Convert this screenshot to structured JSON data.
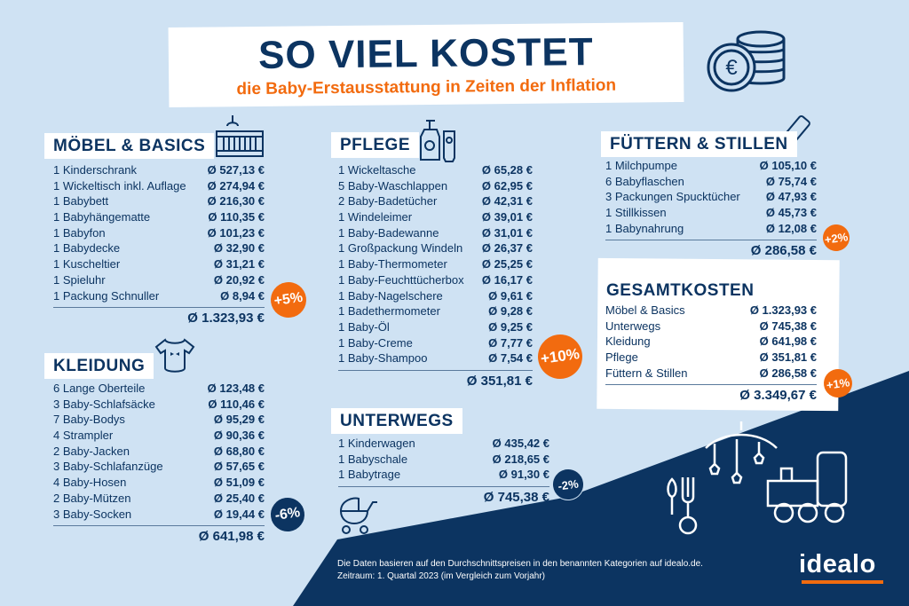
{
  "header": {
    "title": "SO VIEL KOSTET",
    "subtitle": "die Baby-Erstausstattung in Zeiten der Inflation"
  },
  "colors": {
    "navy": "#0c3461",
    "orange": "#f26b0f",
    "background": "#cfe2f3"
  },
  "sections": {
    "moebel": {
      "title": "MÖBEL & BASICS",
      "icon": "crib-icon",
      "items": [
        {
          "label": "1 Kinderschrank",
          "value": "Ø 527,13 €"
        },
        {
          "label": "1 Wickeltisch inkl. Auflage",
          "value": "Ø 274,94 €"
        },
        {
          "label": "1 Babybett",
          "value": "Ø 216,30 €"
        },
        {
          "label": "1 Babyhängematte",
          "value": "Ø 110,35 €"
        },
        {
          "label": "1 Babyfon",
          "value": "Ø 101,23 €"
        },
        {
          "label": "1 Babydecke",
          "value": "Ø 32,90 €"
        },
        {
          "label": "1 Kuscheltier",
          "value": "Ø 31,21 €"
        },
        {
          "label": "1 Spieluhr",
          "value": "Ø 20,92 €"
        },
        {
          "label": "1 Packung Schnuller",
          "value": "Ø 8,94 €"
        }
      ],
      "total": "Ø 1.323,93 €",
      "change": "+5%"
    },
    "kleidung": {
      "title": "KLEIDUNG",
      "icon": "onesie-icon",
      "items": [
        {
          "label": "6 Lange Oberteile",
          "value": "Ø 123,48 €"
        },
        {
          "label": "3 Baby-Schlafsäcke",
          "value": "Ø 110,46 €"
        },
        {
          "label": "7 Baby-Bodys",
          "value": "Ø 95,29 €"
        },
        {
          "label": "4 Strampler",
          "value": "Ø 90,36 €"
        },
        {
          "label": "2 Baby-Jacken",
          "value": "Ø 68,80 €"
        },
        {
          "label": "3 Baby-Schlafanzüge",
          "value": "Ø 57,65 €"
        },
        {
          "label": "4 Baby-Hosen",
          "value": "Ø 51,09 €"
        },
        {
          "label": "2 Baby-Mützen",
          "value": "Ø 25,40 €"
        },
        {
          "label": "3 Baby-Socken",
          "value": "Ø 19,44 €"
        }
      ],
      "total": "Ø 641,98 €",
      "change": "-6%"
    },
    "pflege": {
      "title": "PFLEGE",
      "icon": "lotion-bottle-icon",
      "items": [
        {
          "label": "1 Wickeltasche",
          "value": "Ø 65,28 €"
        },
        {
          "label": "5 Baby-Waschlappen",
          "value": "Ø 62,95 €"
        },
        {
          "label": "2 Baby-Badetücher",
          "value": "Ø 42,31 €"
        },
        {
          "label": "1 Windeleimer",
          "value": "Ø 39,01 €"
        },
        {
          "label": "1 Baby-Badewanne",
          "value": "Ø 31,01 €"
        },
        {
          "label": "1 Großpackung Windeln",
          "value": "Ø 26,37 €"
        },
        {
          "label": "1 Baby-Thermometer",
          "value": "Ø 25,25 €"
        },
        {
          "label": "1 Baby-Feuchttücherbox",
          "value": "Ø 16,17 €"
        },
        {
          "label": "1 Baby-Nagelschere",
          "value": "Ø 9,61 €"
        },
        {
          "label": "1 Badethermometer",
          "value": "Ø 9,28 €"
        },
        {
          "label": "1 Baby-Öl",
          "value": "Ø 9,25 €"
        },
        {
          "label": "1 Baby-Creme",
          "value": "Ø 7,77 €"
        },
        {
          "label": "1 Baby-Shampoo",
          "value": "Ø 7,54 €"
        }
      ],
      "total": "Ø 351,81 €",
      "change": "+10%"
    },
    "unterwegs": {
      "title": "UNTERWEGS",
      "icon": "stroller-icon",
      "items": [
        {
          "label": "1 Kinderwagen",
          "value": "Ø 435,42 €"
        },
        {
          "label": "1 Babyschale",
          "value": "Ø 218,65 €"
        },
        {
          "label": "1 Babytrage",
          "value": "Ø 91,30 €"
        }
      ],
      "total": "Ø 745,38 €",
      "change": "-2%"
    },
    "fuettern": {
      "title": "FÜTTERN & STILLEN",
      "icon": "baby-bottle-icon",
      "items": [
        {
          "label": "1 Milchpumpe",
          "value": "Ø 105,10 €"
        },
        {
          "label": "6 Babyflaschen",
          "value": "Ø 75,74 €"
        },
        {
          "label": "3 Packungen Spucktücher",
          "value": "Ø 47,93 €"
        },
        {
          "label": "1 Stillkissen",
          "value": "Ø 45,73 €"
        },
        {
          "label": "1 Babynahrung",
          "value": "Ø 12,08 €"
        }
      ],
      "total": "Ø 286,58 €",
      "change": "+2%"
    },
    "gesamt": {
      "title": "GESAMTKOSTEN",
      "items": [
        {
          "label": "Möbel & Basics",
          "value": "Ø 1.323,93 €"
        },
        {
          "label": "Unterwegs",
          "value": "Ø 745,38 €"
        },
        {
          "label": "Kleidung",
          "value": "Ø 641,98 €"
        },
        {
          "label": "Pflege",
          "value": "Ø 351,81 €"
        },
        {
          "label": "Füttern & Stillen",
          "value": "Ø 286,58 €"
        }
      ],
      "total": "Ø 3.349,67 €",
      "change": "+1%"
    }
  },
  "footer": {
    "line1": "Die Daten basieren auf den Durchschnittspreisen in den benannten Kategorien auf idealo.de.",
    "line2": "Zeitraum: 1. Quartal 2023  (im Vergleich zum Vorjahr)"
  },
  "logo": "idealo"
}
